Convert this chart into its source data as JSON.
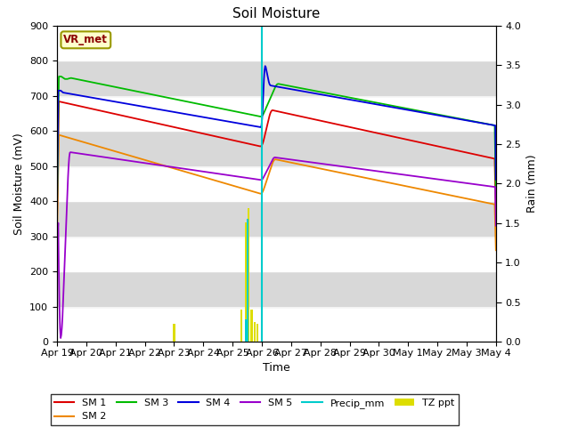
{
  "title": "Soil Moisture",
  "xlabel": "Time",
  "ylabel_left": "Soil Moisture (mV)",
  "ylabel_right": "Rain (mm)",
  "ylim_left": [
    0,
    900
  ],
  "ylim_right": [
    0,
    4.0
  ],
  "annotation_text": "VR_met",
  "annotation_box_color": "#ffffcc",
  "annotation_text_color": "#8b0000",
  "x_tick_labels": [
    "Apr 19",
    "Apr 20",
    "Apr 21",
    "Apr 22",
    "Apr 23",
    "Apr 24",
    "Apr 25",
    "Apr 26",
    "Apr 27",
    "Apr 28",
    "Apr 29",
    "Apr 30",
    "May 1",
    "May 2",
    "May 3",
    "May 4"
  ],
  "line_colors": {
    "SM1": "#dd0000",
    "SM2": "#ee8800",
    "SM3": "#00bb00",
    "SM4": "#0000dd",
    "SM5": "#9900cc",
    "Precip": "#00cccc",
    "TZppt": "#dddd00"
  },
  "band_colors": [
    "#ffffff",
    "#e0e0e0"
  ],
  "plot_bg": "#c8c8c8",
  "event_day": 7.0,
  "total_days": 15
}
